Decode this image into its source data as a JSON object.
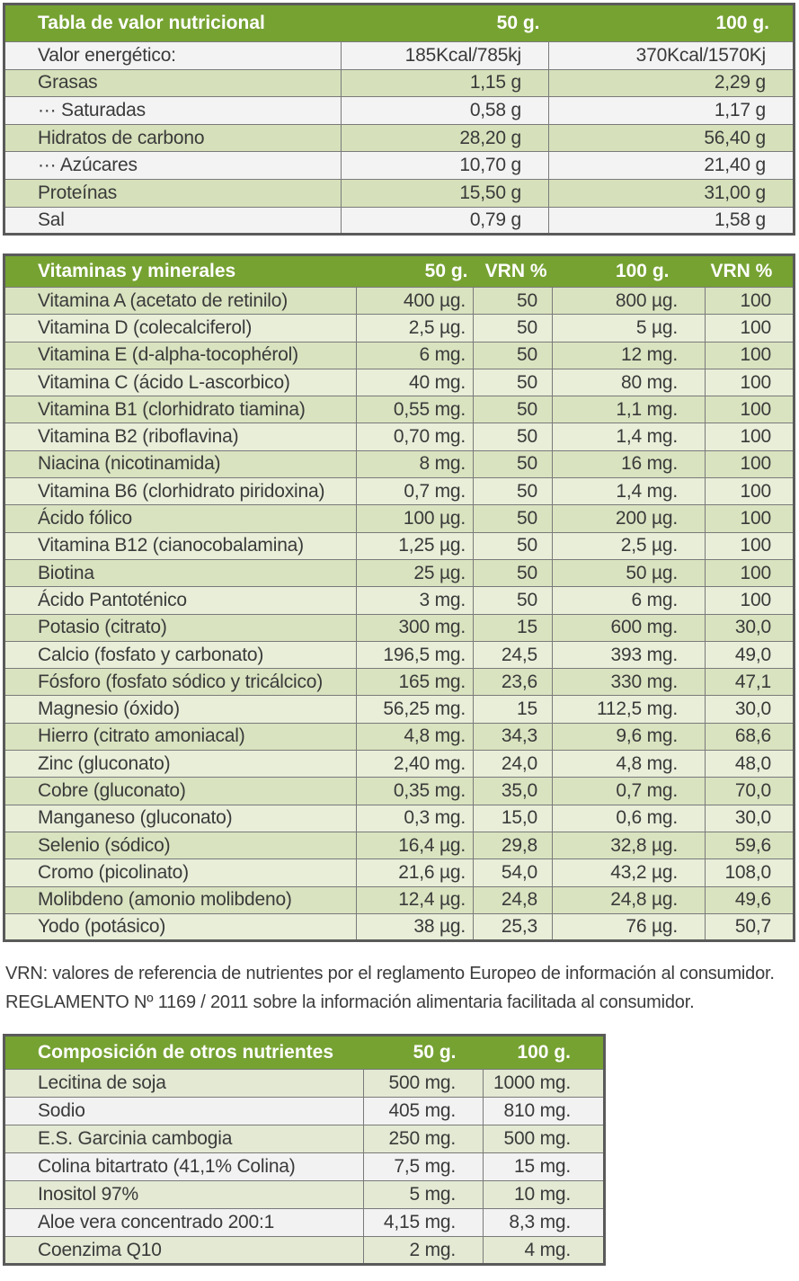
{
  "nutrition": {
    "headers": [
      "Tabla de valor nutricional",
      "50 g.",
      "100 g."
    ],
    "rows": [
      [
        "Valor energético:",
        "185Kcal/785kj",
        "370Kcal/1570Kj"
      ],
      [
        "Grasas",
        "1,15 g",
        "2,29 g"
      ],
      [
        "··· Saturadas",
        "0,58 g",
        "1,17 g"
      ],
      [
        "Hidratos de carbono",
        "28,20 g",
        "56,40 g"
      ],
      [
        "··· Azúcares",
        "10,70 g",
        "21,40 g"
      ],
      [
        "Proteínas",
        "15,50 g",
        "31,00 g"
      ],
      [
        "Sal",
        "0,79 g",
        "1,58 g"
      ]
    ]
  },
  "vitamins": {
    "headers": [
      "Vitaminas y minerales",
      "50 g.",
      "VRN %",
      "100 g.",
      "VRN %"
    ],
    "rows": [
      [
        "Vitamina A (acetato de retinilo)",
        "400 µg.",
        "50",
        "800 µg.",
        "100"
      ],
      [
        "Vitamina D (colecalciferol)",
        "2,5 µg.",
        "50",
        "5 µg.",
        "100"
      ],
      [
        "Vitamina E (d-alpha-tocophérol)",
        "6 mg.",
        "50",
        "12 mg.",
        "100"
      ],
      [
        "Vitamina C (ácido L-ascorbico)",
        "40 mg.",
        "50",
        "80 mg.",
        "100"
      ],
      [
        "Vitamina B1 (clorhidrato tiamina)",
        "0,55 mg.",
        "50",
        "1,1 mg.",
        "100"
      ],
      [
        "Vitamina B2 (riboflavina)",
        "0,70 mg.",
        "50",
        "1,4 mg.",
        "100"
      ],
      [
        "Niacina (nicotinamida)",
        "8 mg.",
        "50",
        "16 mg.",
        "100"
      ],
      [
        "Vitamina B6 (clorhidrato piridoxina)",
        "0,7 mg.",
        "50",
        "1,4 mg.",
        "100"
      ],
      [
        "Ácido fólico",
        "100 µg.",
        "50",
        "200 µg.",
        "100"
      ],
      [
        "Vitamina B12 (cianocobalamina)",
        "1,25 µg.",
        "50",
        "2,5 µg.",
        "100"
      ],
      [
        "Biotina",
        "25 µg.",
        "50",
        "50 µg.",
        "100"
      ],
      [
        "Ácido Pantoténico",
        "3 mg.",
        "50",
        "6 mg.",
        "100"
      ],
      [
        "Potasio (citrato)",
        "300 mg.",
        "15",
        "600 mg.",
        "30,0"
      ],
      [
        "Calcio (fosfato y carbonato)",
        "196,5 mg.",
        "24,5",
        "393 mg.",
        "49,0"
      ],
      [
        "Fósforo (fosfato sódico y tricálcico)",
        "165 mg.",
        "23,6",
        "330 mg.",
        "47,1"
      ],
      [
        "Magnesio (óxido)",
        "56,25 mg.",
        "15",
        "112,5 mg.",
        "30,0"
      ],
      [
        "Hierro (citrato amoniacal)",
        "4,8 mg.",
        "34,3",
        "9,6 mg.",
        "68,6"
      ],
      [
        "Zinc (gluconato)",
        "2,40 mg.",
        "24,0",
        "4,8 mg.",
        "48,0"
      ],
      [
        "Cobre (gluconato)",
        "0,35 mg.",
        "35,0",
        "0,7 mg.",
        "70,0"
      ],
      [
        "Manganeso (gluconato)",
        "0,3 mg.",
        "15,0",
        "0,6 mg.",
        "30,0"
      ],
      [
        "Selenio (sódico)",
        "16,4 µg.",
        "29,8",
        "32,8 µg.",
        "59,6"
      ],
      [
        "Cromo (picolinato)",
        "21,6 µg.",
        "54,0",
        "43,2 µg.",
        "108,0"
      ],
      [
        "Molibdeno (amonio molibdeno)",
        "12,4 µg.",
        "24,8",
        "24,8 µg.",
        "49,6"
      ],
      [
        "Yodo (potásico)",
        "38 µg.",
        "25,3",
        "76 µg.",
        "50,7"
      ]
    ]
  },
  "notes": [
    "VRN: valores de referencia de nutrientes por el reglamento Europeo de información al consumidor.",
    "REGLAMENTO Nº 1169 / 2011 sobre la información alimentaria facilitada al consumidor."
  ],
  "others": {
    "headers": [
      "Composición de otros nutrientes",
      "50 g.",
      "100 g."
    ],
    "rows": [
      [
        "Lecitina de soja",
        "500 mg.",
        "1000 mg."
      ],
      [
        "Sodio",
        "405 mg.",
        "810 mg."
      ],
      [
        "E.S. Garcinia cambogia",
        "250 mg.",
        "500 mg."
      ],
      [
        "Colina bitartrato (41,1% Colina)",
        "7,5 mg.",
        "15 mg."
      ],
      [
        "Inositol 97%",
        "5 mg.",
        "10 mg."
      ],
      [
        "Aloe vera concentrado 200:1",
        "4,15 mg.",
        "8,3 mg."
      ],
      [
        "Coenzima Q10",
        "2 mg.",
        "4 mg."
      ]
    ]
  },
  "colors": {
    "header_green": "#76a232",
    "row_green": "#d6e1bb",
    "row_light": "#f1f3e8",
    "border": "#5a5a5a"
  }
}
